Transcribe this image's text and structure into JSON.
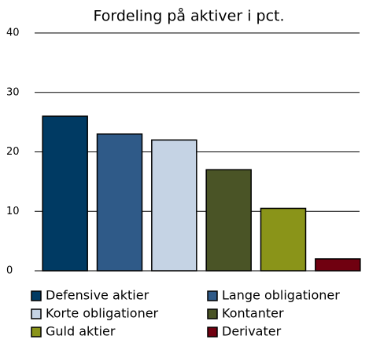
{
  "chart_data": {
    "type": "bar",
    "title": "Fordeling på aktiver i pct.",
    "categories": [
      "Defensive aktier",
      "Lange obligationer",
      "Korte obligationer",
      "Kontanter",
      "Guld aktier",
      "Derivater"
    ],
    "values": [
      26,
      23,
      22,
      17,
      10.5,
      2
    ],
    "colors": [
      "#003a63",
      "#2f5a88",
      "#c5d3e4",
      "#4a5426",
      "#8a9419",
      "#700010"
    ],
    "ylim": [
      0,
      40
    ],
    "yticks": [
      0,
      10,
      20,
      30,
      40
    ],
    "grid": true
  }
}
